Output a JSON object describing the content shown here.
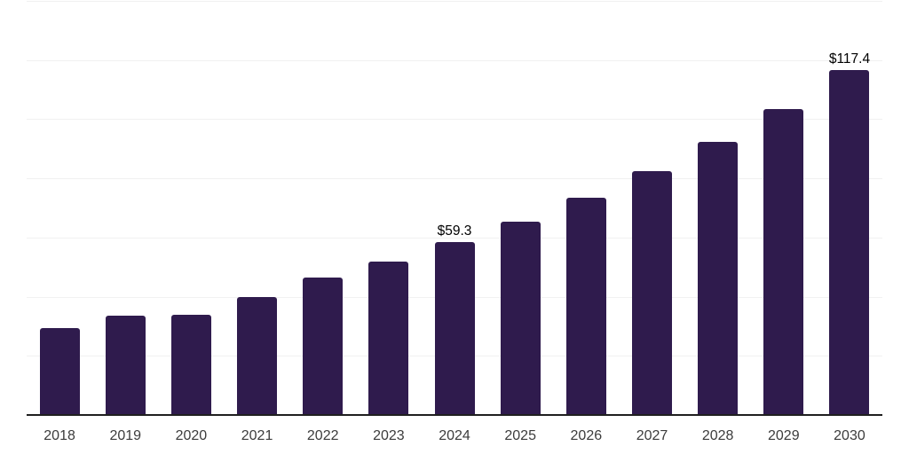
{
  "chart_data": {
    "type": "bar",
    "title": "",
    "xlabel": "",
    "ylabel": "",
    "categories": [
      "2018",
      "2019",
      "2020",
      "2021",
      "2022",
      "2023",
      "2024",
      "2025",
      "2026",
      "2027",
      "2028",
      "2029",
      "2030"
    ],
    "values": [
      30.4,
      34.4,
      34.7,
      40.9,
      47.5,
      52.9,
      59.3,
      66.3,
      74.4,
      83.3,
      93.1,
      104.4,
      117.4
    ],
    "data_labels": {
      "2024": "$59.3",
      "2030": "$117.4"
    },
    "ylim": [
      0,
      140
    ],
    "gridline_step": 20,
    "grid": "horizontal-only",
    "legend": "none",
    "y_axis_tick_labels": "none",
    "colors": {
      "bar": "#2f1b4d",
      "gridline": "#f1f1f1",
      "axis_line": "#1f1f1f",
      "tick_label": "#3c3c3c",
      "value_label": "#000000",
      "background": "#ffffff"
    }
  }
}
